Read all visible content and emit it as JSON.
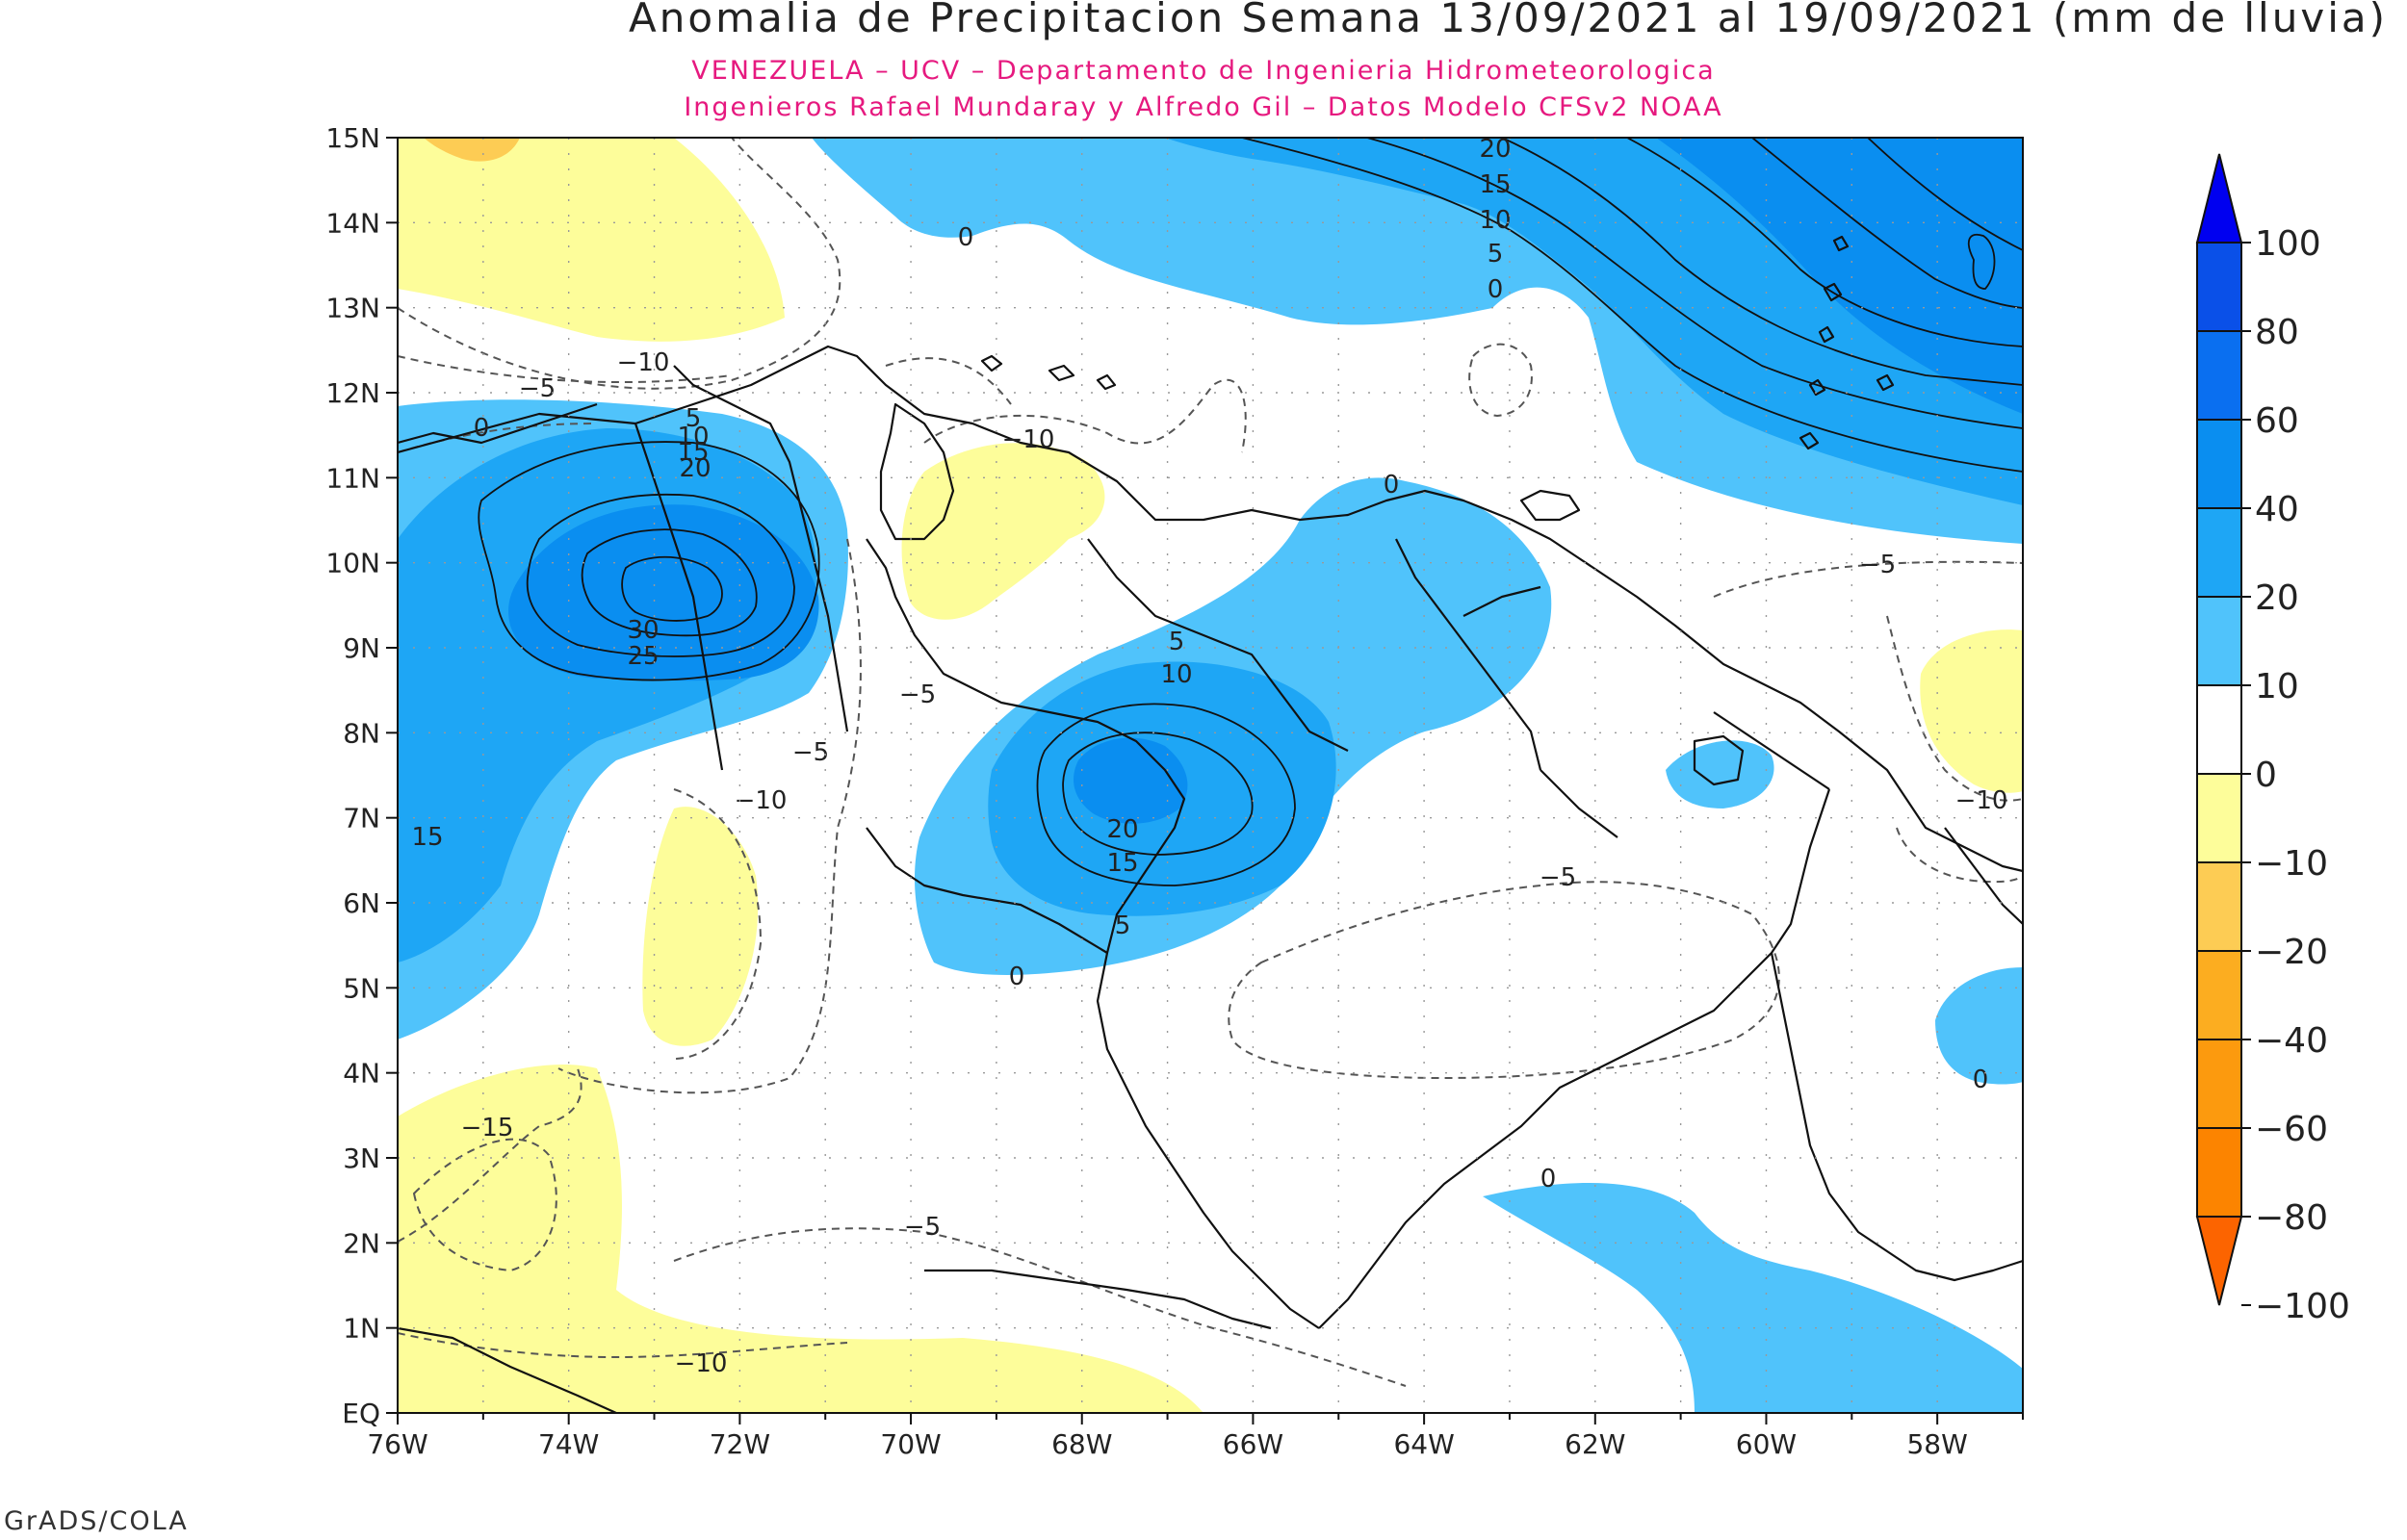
{
  "title": "Anomalia de Precipitacion Semana 13/09/2021 al 19/09/2021 (mm de lluvia)",
  "subtitle_line1": "VENEZUELA – UCV – Departamento de Ingenieria Hidrometeorologica",
  "subtitle_line2": "Ingenieros Rafael Mundaray y Alfredo Gil – Datos Modelo CFSv2 NOAA",
  "credit": "GrADS/COLA",
  "colors": {
    "title_accent": "#e6197f",
    "blue_light": "#50c3fb",
    "blue_mid": "#1ea6f5",
    "blue_dark": "#0a8ef0",
    "yellow": "#fdfd9a",
    "orange_light": "#fdcc54",
    "coast": "#111111"
  },
  "map": {
    "lon_labels": [
      "76W",
      "74W",
      "72W",
      "70W",
      "68W",
      "66W",
      "64W",
      "62W",
      "60W",
      "58W"
    ],
    "lat_labels": [
      "EQ",
      "1N",
      "2N",
      "3N",
      "4N",
      "5N",
      "6N",
      "7N",
      "8N",
      "9N",
      "10N",
      "11N",
      "12N",
      "13N",
      "14N",
      "15N"
    ],
    "lon_range": [
      -76,
      -57
    ],
    "lat_range": [
      0,
      15
    ],
    "contour_labels": [
      "20",
      "15",
      "10",
      "5",
      "0",
      "0",
      "−10",
      "−5",
      "0",
      "5",
      "10",
      "15",
      "20",
      "30",
      "25",
      "−10",
      "0",
      "5",
      "10",
      "20",
      "15",
      "5",
      "0",
      "−5",
      "−5",
      "−10",
      "15",
      "−10",
      "−5",
      "−5",
      "−15",
      "−10",
      "−5",
      "0",
      "0"
    ]
  },
  "colorbar": {
    "labels": [
      "100",
      "80",
      "60",
      "40",
      "20",
      "10",
      "0",
      "−10",
      "−20",
      "−40",
      "−60",
      "−80",
      "−100"
    ],
    "colors": [
      "#0000f0",
      "#0a50e8",
      "#0a6ff0",
      "#0a8ef0",
      "#1ea6f5",
      "#50c3fb",
      "#ffffff",
      "#fdfd9a",
      "#fdcc54",
      "#fcad20",
      "#fc9a0e",
      "#fc8400",
      "#fc6400"
    ]
  }
}
